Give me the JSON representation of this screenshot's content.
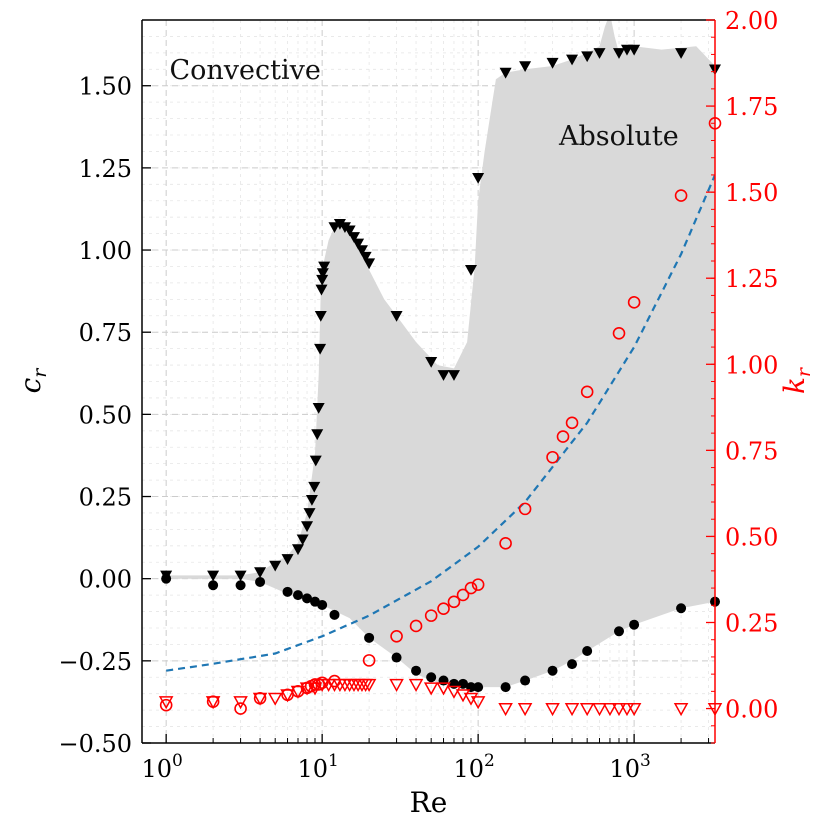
{
  "chart_data": {
    "type": "scatter",
    "xlabel": "Re",
    "ylabel_left": "c_r",
    "ylabel_right": "k_r",
    "xscale": "log",
    "xlim": [
      0.7,
      3300
    ],
    "ylim_left": [
      -0.5,
      1.7
    ],
    "ylim_right": [
      -0.1,
      2.0
    ],
    "x_ticks": [
      {
        "value": 1,
        "base": "10",
        "exp": "0"
      },
      {
        "value": 10,
        "base": "10",
        "exp": "1"
      },
      {
        "value": 100,
        "base": "10",
        "exp": "2"
      },
      {
        "value": 1000,
        "base": "10",
        "exp": "3"
      }
    ],
    "y_left_ticks": [
      {
        "value": -0.5,
        "label": "−0.50"
      },
      {
        "value": -0.25,
        "label": "−0.25"
      },
      {
        "value": 0.0,
        "label": "0.00"
      },
      {
        "value": 0.25,
        "label": "0.25"
      },
      {
        "value": 0.5,
        "label": "0.50"
      },
      {
        "value": 0.75,
        "label": "0.75"
      },
      {
        "value": 1.0,
        "label": "1.00"
      },
      {
        "value": 1.25,
        "label": "1.25"
      },
      {
        "value": 1.5,
        "label": "1.50"
      }
    ],
    "y_right_ticks": [
      {
        "value": 0.0,
        "label": "0.00"
      },
      {
        "value": 0.25,
        "label": "0.25"
      },
      {
        "value": 0.5,
        "label": "0.50"
      },
      {
        "value": 0.75,
        "label": "0.75"
      },
      {
        "value": 1.0,
        "label": "1.00"
      },
      {
        "value": 1.25,
        "label": "1.25"
      },
      {
        "value": 1.5,
        "label": "1.50"
      },
      {
        "value": 1.75,
        "label": "1.75"
      },
      {
        "value": 2.0,
        "label": "2.00"
      }
    ],
    "annotations": [
      {
        "text": "Convective",
        "x": 1.05,
        "y": 1.52
      },
      {
        "text": "Absolute",
        "x": 330,
        "y": 1.32
      }
    ],
    "shaded_region": {
      "name": "Absolute region",
      "color": "#d9d9d9",
      "upper": [
        [
          0.95,
          0.01
        ],
        [
          3,
          0.01
        ],
        [
          4,
          0.02
        ],
        [
          5,
          0.05
        ],
        [
          6,
          0.07
        ],
        [
          7,
          0.11
        ],
        [
          8,
          0.2
        ],
        [
          9,
          0.38
        ],
        [
          9.5,
          0.62
        ],
        [
          9.8,
          0.88
        ],
        [
          10.2,
          0.96
        ],
        [
          11,
          1.03
        ],
        [
          12,
          1.07
        ],
        [
          14,
          1.07
        ],
        [
          16,
          1.03
        ],
        [
          20,
          0.94
        ],
        [
          25,
          0.85
        ],
        [
          30,
          0.8
        ],
        [
          40,
          0.72
        ],
        [
          55,
          0.65
        ],
        [
          70,
          0.64
        ],
        [
          85,
          0.72
        ],
        [
          95,
          0.95
        ],
        [
          100,
          1.15
        ],
        [
          110,
          1.3
        ],
        [
          130,
          1.52
        ],
        [
          150,
          1.54
        ],
        [
          200,
          1.55
        ],
        [
          300,
          1.56
        ],
        [
          400,
          1.58
        ],
        [
          500,
          1.6
        ],
        [
          600,
          1.62
        ],
        [
          650,
          1.68
        ],
        [
          700,
          1.72
        ],
        [
          750,
          1.65
        ],
        [
          800,
          1.6
        ],
        [
          1000,
          1.62
        ],
        [
          1500,
          1.61
        ],
        [
          2500,
          1.62
        ],
        [
          3300,
          1.56
        ]
      ],
      "lower": [
        [
          3300,
          -0.07
        ],
        [
          2000,
          -0.09
        ],
        [
          1000,
          -0.14
        ],
        [
          800,
          -0.16
        ],
        [
          500,
          -0.22
        ],
        [
          400,
          -0.25
        ],
        [
          300,
          -0.28
        ],
        [
          200,
          -0.31
        ],
        [
          150,
          -0.33
        ],
        [
          100,
          -0.33
        ],
        [
          70,
          -0.33
        ],
        [
          50,
          -0.31
        ],
        [
          40,
          -0.29
        ],
        [
          30,
          -0.24
        ],
        [
          20,
          -0.18
        ],
        [
          15,
          -0.12
        ],
        [
          10,
          -0.08
        ],
        [
          7,
          -0.06
        ],
        [
          5,
          -0.03
        ],
        [
          4,
          -0.01
        ],
        [
          3,
          0.0
        ],
        [
          0.95,
          0.0
        ]
      ]
    },
    "series": [
      {
        "name": "c_r upper (triangle down, black, left axis)",
        "axis": "left",
        "marker": "triangle-down",
        "filled": true,
        "color": "#000000",
        "points": [
          [
            1,
            0.01
          ],
          [
            2,
            0.01
          ],
          [
            3,
            0.01
          ],
          [
            4,
            0.02
          ],
          [
            5,
            0.04
          ],
          [
            6,
            0.06
          ],
          [
            7,
            0.09
          ],
          [
            7.5,
            0.12
          ],
          [
            8,
            0.16
          ],
          [
            8.3,
            0.2
          ],
          [
            8.6,
            0.24
          ],
          [
            8.9,
            0.28
          ],
          [
            9.1,
            0.36
          ],
          [
            9.3,
            0.44
          ],
          [
            9.5,
            0.52
          ],
          [
            9.7,
            0.7
          ],
          [
            9.8,
            0.8
          ],
          [
            9.9,
            0.88
          ],
          [
            10,
            0.91
          ],
          [
            10.1,
            0.93
          ],
          [
            10.3,
            0.95
          ],
          [
            12,
            1.07
          ],
          [
            13,
            1.08
          ],
          [
            14,
            1.07
          ],
          [
            15,
            1.06
          ],
          [
            16,
            1.04
          ],
          [
            17,
            1.02
          ],
          [
            18,
            1.0
          ],
          [
            19,
            0.98
          ],
          [
            20,
            0.96
          ],
          [
            30,
            0.8
          ],
          [
            50,
            0.66
          ],
          [
            60,
            0.62
          ],
          [
            70,
            0.62
          ],
          [
            90,
            0.94
          ],
          [
            100,
            1.22
          ],
          [
            150,
            1.54
          ],
          [
            200,
            1.56
          ],
          [
            300,
            1.57
          ],
          [
            400,
            1.58
          ],
          [
            500,
            1.59
          ],
          [
            600,
            1.6
          ],
          [
            800,
            1.6
          ],
          [
            900,
            1.61
          ],
          [
            1000,
            1.61
          ],
          [
            2000,
            1.6
          ],
          [
            3300,
            1.55
          ]
        ]
      },
      {
        "name": "c_r lower (circle, black, left axis)",
        "axis": "left",
        "marker": "circle",
        "filled": true,
        "color": "#000000",
        "points": [
          [
            1,
            0.0
          ],
          [
            2,
            -0.02
          ],
          [
            3,
            -0.02
          ],
          [
            4,
            -0.01
          ],
          [
            6,
            -0.04
          ],
          [
            7,
            -0.05
          ],
          [
            8,
            -0.06
          ],
          [
            9,
            -0.07
          ],
          [
            10,
            -0.08
          ],
          [
            12,
            -0.11
          ],
          [
            20,
            -0.18
          ],
          [
            30,
            -0.24
          ],
          [
            40,
            -0.28
          ],
          [
            50,
            -0.3
          ],
          [
            60,
            -0.31
          ],
          [
            70,
            -0.32
          ],
          [
            80,
            -0.32
          ],
          [
            90,
            -0.33
          ],
          [
            100,
            -0.33
          ],
          [
            150,
            -0.33
          ],
          [
            200,
            -0.31
          ],
          [
            300,
            -0.28
          ],
          [
            400,
            -0.26
          ],
          [
            500,
            -0.22
          ],
          [
            800,
            -0.16
          ],
          [
            1000,
            -0.14
          ],
          [
            2000,
            -0.09
          ],
          [
            3300,
            -0.07
          ]
        ]
      },
      {
        "name": "k_r (open circle, red, right axis)",
        "axis": "right",
        "marker": "circle",
        "filled": false,
        "color": "#ff0000",
        "points": [
          [
            1,
            0.01
          ],
          [
            2,
            0.02
          ],
          [
            3,
            0.0
          ],
          [
            4,
            0.03
          ],
          [
            6,
            0.04
          ],
          [
            7,
            0.05
          ],
          [
            8,
            0.06
          ],
          [
            8.5,
            0.065
          ],
          [
            9,
            0.07
          ],
          [
            9.5,
            0.07
          ],
          [
            10,
            0.075
          ],
          [
            12,
            0.08
          ],
          [
            20,
            0.14
          ],
          [
            30,
            0.21
          ],
          [
            40,
            0.24
          ],
          [
            50,
            0.27
          ],
          [
            60,
            0.29
          ],
          [
            70,
            0.31
          ],
          [
            80,
            0.33
          ],
          [
            90,
            0.35
          ],
          [
            100,
            0.36
          ],
          [
            150,
            0.48
          ],
          [
            200,
            0.58
          ],
          [
            300,
            0.73
          ],
          [
            350,
            0.79
          ],
          [
            400,
            0.83
          ],
          [
            500,
            0.92
          ],
          [
            800,
            1.09
          ],
          [
            1000,
            1.18
          ],
          [
            2000,
            1.49
          ],
          [
            3300,
            1.7
          ]
        ]
      },
      {
        "name": "k_r (open triangle down, red, right axis)",
        "axis": "right",
        "marker": "triangle-down",
        "filled": false,
        "color": "#ff0000",
        "points": [
          [
            1,
            0.02
          ],
          [
            2,
            0.02
          ],
          [
            3,
            0.02
          ],
          [
            4,
            0.03
          ],
          [
            5,
            0.03
          ],
          [
            6,
            0.04
          ],
          [
            7,
            0.05
          ],
          [
            8,
            0.06
          ],
          [
            9,
            0.06
          ],
          [
            10,
            0.07
          ],
          [
            11,
            0.07
          ],
          [
            12,
            0.07
          ],
          [
            13,
            0.07
          ],
          [
            14,
            0.07
          ],
          [
            15,
            0.07
          ],
          [
            16,
            0.07
          ],
          [
            17,
            0.07
          ],
          [
            18,
            0.07
          ],
          [
            19,
            0.07
          ],
          [
            20,
            0.07
          ],
          [
            30,
            0.07
          ],
          [
            40,
            0.07
          ],
          [
            50,
            0.06
          ],
          [
            60,
            0.06
          ],
          [
            70,
            0.05
          ],
          [
            80,
            0.04
          ],
          [
            90,
            0.03
          ],
          [
            100,
            0.02
          ],
          [
            150,
            0.0
          ],
          [
            200,
            0.0
          ],
          [
            300,
            0.0
          ],
          [
            400,
            0.0
          ],
          [
            500,
            0.0
          ],
          [
            600,
            0.0
          ],
          [
            700,
            0.0
          ],
          [
            800,
            0.0
          ],
          [
            900,
            0.0
          ],
          [
            1000,
            0.0
          ],
          [
            2000,
            0.0
          ],
          [
            3300,
            0.0
          ]
        ]
      },
      {
        "name": "k_r fit (dashed blue, right axis)",
        "axis": "right",
        "marker": "line-dashed",
        "color": "#1f77b4",
        "points": [
          [
            1,
            0.11
          ],
          [
            2,
            0.13
          ],
          [
            5,
            0.16
          ],
          [
            10,
            0.21
          ],
          [
            20,
            0.27
          ],
          [
            50,
            0.37
          ],
          [
            100,
            0.47
          ],
          [
            200,
            0.6
          ],
          [
            500,
            0.83
          ],
          [
            1000,
            1.05
          ],
          [
            2000,
            1.32
          ],
          [
            3300,
            1.55
          ]
        ]
      }
    ]
  }
}
